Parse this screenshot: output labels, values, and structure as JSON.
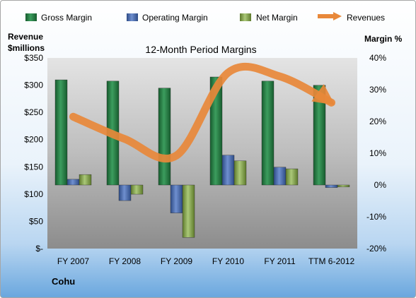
{
  "chart_data": {
    "type": "bar",
    "title": "12-Month Period Margins",
    "company": "Cohu",
    "categories": [
      "FY 2007",
      "FY 2008",
      "FY 2009",
      "FY 2010",
      "FY 2011",
      "TTM 6-2012"
    ],
    "series": [
      {
        "name": "Gross Margin",
        "axis": "right",
        "color": "#217a3f",
        "values": [
          33.1,
          32.7,
          30.5,
          34.0,
          32.7,
          31.4
        ]
      },
      {
        "name": "Operating Margin",
        "axis": "right",
        "color": "#4f6fae",
        "values": [
          1.8,
          -4.9,
          -8.8,
          9.4,
          5.6,
          -0.8
        ]
      },
      {
        "name": "Net Margin",
        "axis": "right",
        "color": "#8cab52",
        "values": [
          3.3,
          -2.9,
          -16.5,
          7.6,
          5.1,
          -0.6
        ]
      },
      {
        "name": "Revenues",
        "axis": "left",
        "type": "line",
        "color": "#e8883a",
        "values": [
          242,
          201,
          171,
          323,
          316,
          268
        ]
      }
    ],
    "left_axis": {
      "label_line1": "Revenue",
      "label_line2": "$millions",
      "ylim": [
        0,
        350
      ],
      "ticks": [
        "$-",
        "$50",
        "$100",
        "$150",
        "$200",
        "$250",
        "$300",
        "$350"
      ]
    },
    "right_axis": {
      "label": "Margin %",
      "ylim": [
        -20,
        40
      ],
      "ticks": [
        "-20%",
        "-10%",
        "0%",
        "10%",
        "20%",
        "30%",
        "40%"
      ]
    },
    "legend_position": "top",
    "grid": false
  }
}
